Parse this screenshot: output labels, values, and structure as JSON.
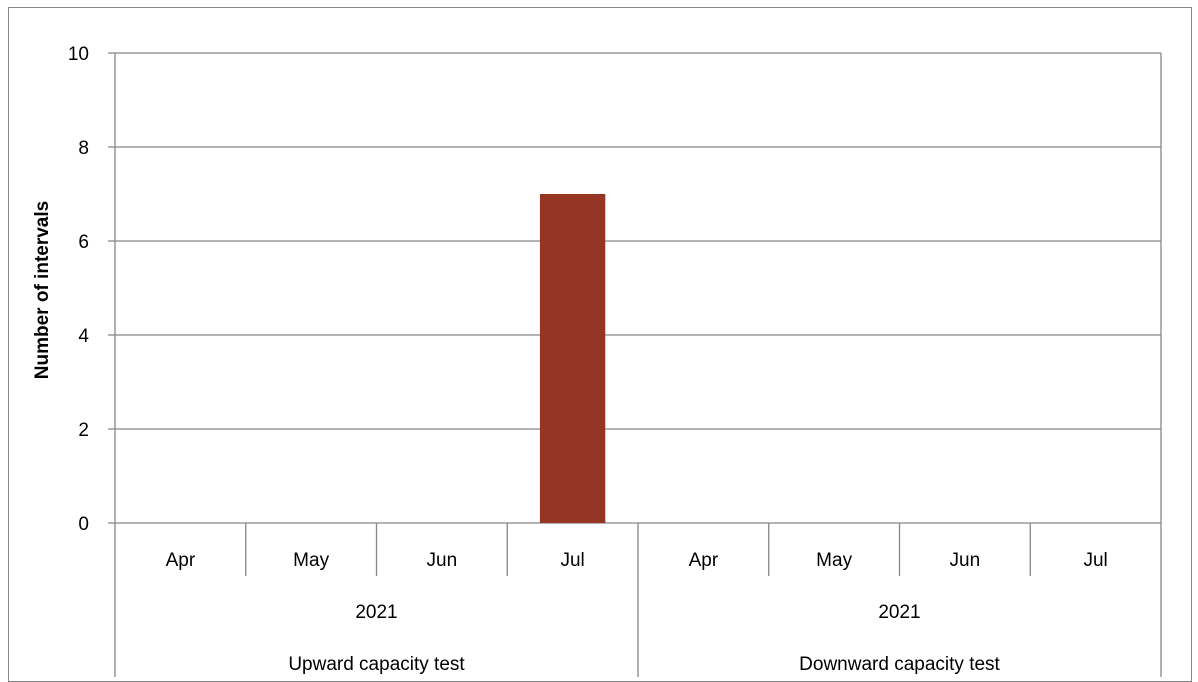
{
  "chart_data": {
    "type": "bar",
    "title": "",
    "xlabel": "",
    "ylabel": "Number of intervals",
    "ylim": [
      0,
      10
    ],
    "yticks": [
      0,
      2,
      4,
      6,
      8,
      10
    ],
    "grid": true,
    "bar_color": "#953624",
    "grid_color": "#868686",
    "categories": [
      "Apr",
      "May",
      "Jun",
      "Jul",
      "Apr",
      "May",
      "Jun",
      "Jul"
    ],
    "values": [
      0,
      0,
      0,
      7,
      0,
      0,
      0,
      0
    ],
    "category_groups": [
      {
        "year": "2021",
        "group": "Upward capacity test",
        "months": [
          "Apr",
          "May",
          "Jun",
          "Jul"
        ]
      },
      {
        "year": "2021",
        "group": "Downward capacity test",
        "months": [
          "Apr",
          "May",
          "Jun",
          "Jul"
        ]
      }
    ]
  }
}
